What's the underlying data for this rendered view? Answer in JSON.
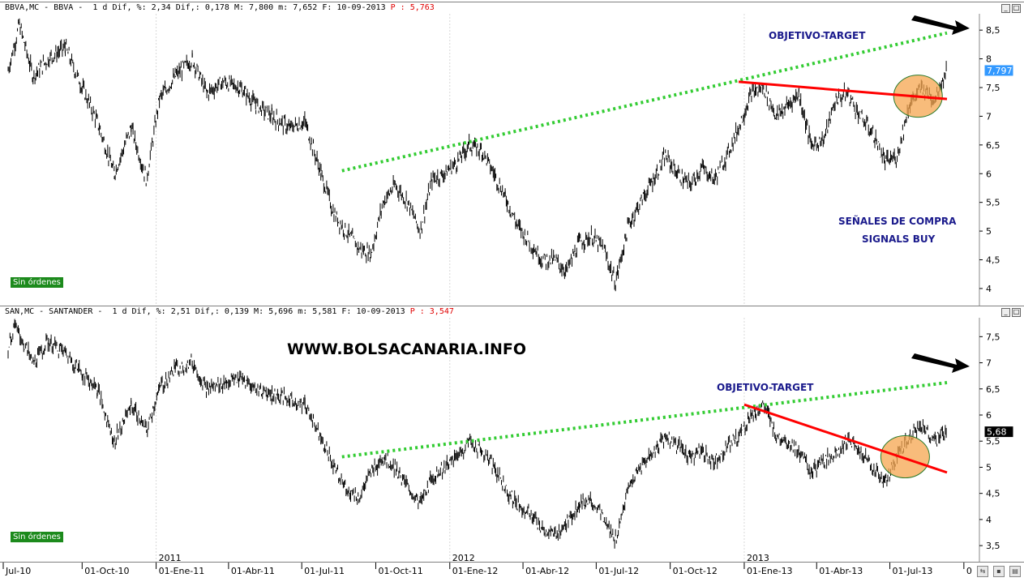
{
  "panes": [
    {
      "id": "bbva",
      "header": {
        "symbol": "BBVA,MC - BBVA -  1 d Dif, %: 2,34 Dif,: 0,178 M: 7,800 m: 7,652 F: 10-09-2013 ",
        "price_label": "P : 5,763"
      },
      "orders_label": "Sin órdenes",
      "last_value_label": "7,797",
      "annotations": {
        "target": "OBJETIVO-TARGET",
        "signals_line1": "SEÑALES DE COMPRA",
        "signals_line2": "SIGNALS BUY"
      },
      "y_ticks": [
        "8,5",
        "8",
        "7,5",
        "7",
        "6,5",
        "6",
        "5,5",
        "5",
        "4,5",
        "4"
      ]
    },
    {
      "id": "san",
      "header": {
        "symbol": "SAN,MC - SANTANDER -  1 d Dif, %: 2,51 Dif,: 0,139 M: 5,696 m: 5,581 F: 10-09-2013 ",
        "price_label": "P : 3,547"
      },
      "orders_label": "Sin órdenes",
      "last_value_label": "5,68",
      "annotations": {
        "website": "WWW.BOLSACANARIA.INFO",
        "target": "OBJETIVO-TARGET"
      },
      "y_ticks": [
        "7,5",
        "7",
        "6,5",
        "6",
        "5,5",
        "5",
        "4,5",
        "4",
        "3,5"
      ]
    }
  ],
  "x_axis": {
    "year_labels": [
      "2011",
      "2012",
      "2013"
    ],
    "date_labels": [
      "Jul-10",
      "01-Oct-10",
      "01-Ene-11",
      "01-Abr-11",
      "01-Jul-11",
      "01-Oct-11",
      "01-Ene-12",
      "01-Abr-12",
      "01-Jul-12",
      "01-Oct-12",
      "01-Ene-13",
      "01-Abr-13",
      "01-Jul-13",
      "0"
    ]
  },
  "colors": {
    "price_line": "#000000",
    "trend_up": "#33cc33",
    "resistance": "#ff0000",
    "highlight_fill": "#f5a54f",
    "annotation_text": "#1a1a8c",
    "badge": "#1c8a1c",
    "last_value_box": "#3399ff"
  },
  "chart_data": [
    {
      "type": "line",
      "title": "BBVA,MC - BBVA",
      "ylim": [
        3.9,
        8.7
      ],
      "x_range": [
        "2010-07-01",
        "2013-09-10"
      ],
      "series": [
        {
          "name": "BBVA",
          "points": [
            [
              "2010-07-01",
              7.8
            ],
            [
              "2010-07-15",
              8.6
            ],
            [
              "2010-08-01",
              7.7
            ],
            [
              "2010-08-20",
              8.0
            ],
            [
              "2010-09-10",
              8.2
            ],
            [
              "2010-10-01",
              7.5
            ],
            [
              "2010-10-20",
              6.9
            ],
            [
              "2010-11-10",
              6.0
            ],
            [
              "2010-12-01",
              6.8
            ],
            [
              "2010-12-20",
              5.9
            ],
            [
              "2011-01-05",
              7.3
            ],
            [
              "2011-01-25",
              7.7
            ],
            [
              "2011-02-15",
              8.0
            ],
            [
              "2011-03-05",
              7.4
            ],
            [
              "2011-03-25",
              7.6
            ],
            [
              "2011-04-15",
              7.5
            ],
            [
              "2011-05-05",
              7.2
            ],
            [
              "2011-05-25",
              7.0
            ],
            [
              "2011-06-15",
              6.8
            ],
            [
              "2011-07-05",
              6.9
            ],
            [
              "2011-07-25",
              6.0
            ],
            [
              "2011-08-10",
              5.3
            ],
            [
              "2011-08-25",
              5.0
            ],
            [
              "2011-09-10",
              4.7
            ],
            [
              "2011-09-25",
              4.6
            ],
            [
              "2011-10-10",
              5.5
            ],
            [
              "2011-10-25",
              5.8
            ],
            [
              "2011-11-10",
              5.5
            ],
            [
              "2011-11-25",
              5.0
            ],
            [
              "2011-12-10",
              5.9
            ],
            [
              "2011-12-25",
              6.0
            ],
            [
              "2012-01-10",
              6.2
            ],
            [
              "2012-01-25",
              6.5
            ],
            [
              "2012-02-10",
              6.4
            ],
            [
              "2012-02-25",
              6.0
            ],
            [
              "2012-03-10",
              5.6
            ],
            [
              "2012-03-25",
              5.1
            ],
            [
              "2012-04-10",
              4.8
            ],
            [
              "2012-04-25",
              4.5
            ],
            [
              "2012-05-10",
              4.5
            ],
            [
              "2012-05-25",
              4.3
            ],
            [
              "2012-06-10",
              4.8
            ],
            [
              "2012-06-25",
              4.9
            ],
            [
              "2012-07-10",
              4.7
            ],
            [
              "2012-07-25",
              4.1
            ],
            [
              "2012-08-10",
              5.1
            ],
            [
              "2012-08-25",
              5.5
            ],
            [
              "2012-09-10",
              5.9
            ],
            [
              "2012-09-25",
              6.3
            ],
            [
              "2012-10-10",
              6.0
            ],
            [
              "2012-10-25",
              5.8
            ],
            [
              "2012-11-10",
              6.1
            ],
            [
              "2012-11-25",
              5.9
            ],
            [
              "2012-12-10",
              6.3
            ],
            [
              "2012-12-25",
              6.8
            ],
            [
              "2013-01-10",
              7.4
            ],
            [
              "2013-01-25",
              7.5
            ],
            [
              "2013-02-10",
              7.0
            ],
            [
              "2013-02-25",
              7.2
            ],
            [
              "2013-03-10",
              7.4
            ],
            [
              "2013-03-25",
              6.5
            ],
            [
              "2013-04-10",
              6.6
            ],
            [
              "2013-04-25",
              7.3
            ],
            [
              "2013-05-10",
              7.4
            ],
            [
              "2013-05-25",
              7.0
            ],
            [
              "2013-06-10",
              6.7
            ],
            [
              "2013-06-25",
              6.2
            ],
            [
              "2013-07-10",
              6.3
            ],
            [
              "2013-07-25",
              7.2
            ],
            [
              "2013-08-10",
              7.5
            ],
            [
              "2013-08-25",
              7.3
            ],
            [
              "2013-09-10",
              7.8
            ]
          ]
        }
      ],
      "trendlines": [
        {
          "label": "OBJETIVO-TARGET",
          "style": "dotted",
          "color": "green",
          "from": [
            "2011-08-20",
            6.05
          ],
          "to": [
            "2013-09-10",
            8.45
          ]
        },
        {
          "label": "",
          "style": "solid",
          "color": "red",
          "from": [
            "2012-12-25",
            7.6
          ],
          "to": [
            "2013-09-10",
            7.3
          ]
        }
      ],
      "highlight": {
        "center": [
          "2013-08-05",
          7.35
        ]
      }
    },
    {
      "type": "line",
      "title": "SAN,MC - SANTANDER",
      "ylim": [
        3.3,
        7.8
      ],
      "x_range": [
        "2010-07-01",
        "2013-09-10"
      ],
      "series": [
        {
          "name": "SANTANDER",
          "points": [
            [
              "2010-07-01",
              7.3
            ],
            [
              "2010-07-10",
              7.7
            ],
            [
              "2010-08-01",
              7.0
            ],
            [
              "2010-08-20",
              7.4
            ],
            [
              "2010-09-10",
              7.2
            ],
            [
              "2010-10-01",
              6.8
            ],
            [
              "2010-10-20",
              6.5
            ],
            [
              "2010-11-10",
              5.5
            ],
            [
              "2010-12-01",
              6.2
            ],
            [
              "2010-12-20",
              5.7
            ],
            [
              "2011-01-05",
              6.5
            ],
            [
              "2011-01-25",
              6.9
            ],
            [
              "2011-02-15",
              7.0
            ],
            [
              "2011-03-05",
              6.5
            ],
            [
              "2011-03-25",
              6.6
            ],
            [
              "2011-04-15",
              6.7
            ],
            [
              "2011-05-05",
              6.5
            ],
            [
              "2011-05-25",
              6.4
            ],
            [
              "2011-06-15",
              6.3
            ],
            [
              "2011-07-05",
              6.2
            ],
            [
              "2011-07-25",
              5.6
            ],
            [
              "2011-08-10",
              5.0
            ],
            [
              "2011-08-25",
              4.6
            ],
            [
              "2011-09-10",
              4.4
            ],
            [
              "2011-09-25",
              4.9
            ],
            [
              "2011-10-10",
              5.2
            ],
            [
              "2011-10-25",
              5.0
            ],
            [
              "2011-11-10",
              4.6
            ],
            [
              "2011-11-25",
              4.3
            ],
            [
              "2011-12-10",
              4.8
            ],
            [
              "2011-12-25",
              5.0
            ],
            [
              "2012-01-10",
              5.2
            ],
            [
              "2012-01-25",
              5.5
            ],
            [
              "2012-02-10",
              5.3
            ],
            [
              "2012-02-25",
              5.0
            ],
            [
              "2012-03-10",
              4.6
            ],
            [
              "2012-03-25",
              4.3
            ],
            [
              "2012-04-10",
              4.1
            ],
            [
              "2012-04-25",
              3.8
            ],
            [
              "2012-05-10",
              3.7
            ],
            [
              "2012-05-25",
              3.9
            ],
            [
              "2012-06-10",
              4.3
            ],
            [
              "2012-06-25",
              4.4
            ],
            [
              "2012-07-10",
              4.0
            ],
            [
              "2012-07-25",
              3.6
            ],
            [
              "2012-08-10",
              4.6
            ],
            [
              "2012-08-25",
              5.0
            ],
            [
              "2012-09-10",
              5.3
            ],
            [
              "2012-09-25",
              5.6
            ],
            [
              "2012-10-10",
              5.4
            ],
            [
              "2012-10-25",
              5.2
            ],
            [
              "2012-11-10",
              5.3
            ],
            [
              "2012-11-25",
              5.1
            ],
            [
              "2012-12-10",
              5.4
            ],
            [
              "2012-12-25",
              5.6
            ],
            [
              "2013-01-10",
              6.0
            ],
            [
              "2013-01-25",
              6.2
            ],
            [
              "2013-02-10",
              5.6
            ],
            [
              "2013-02-25",
              5.5
            ],
            [
              "2013-03-10",
              5.3
            ],
            [
              "2013-03-25",
              4.9
            ],
            [
              "2013-04-10",
              5.1
            ],
            [
              "2013-04-25",
              5.3
            ],
            [
              "2013-05-10",
              5.5
            ],
            [
              "2013-05-25",
              5.3
            ],
            [
              "2013-06-10",
              5.0
            ],
            [
              "2013-06-25",
              4.7
            ],
            [
              "2013-07-10",
              5.2
            ],
            [
              "2013-07-25",
              5.6
            ],
            [
              "2013-08-10",
              5.8
            ],
            [
              "2013-08-25",
              5.5
            ],
            [
              "2013-09-10",
              5.7
            ]
          ]
        }
      ],
      "trendlines": [
        {
          "label": "OBJETIVO-TARGET",
          "style": "dotted",
          "color": "green",
          "from": [
            "2011-08-20",
            5.2
          ],
          "to": [
            "2013-09-10",
            6.62
          ]
        },
        {
          "label": "",
          "style": "solid",
          "color": "red",
          "from": [
            "2013-01-01",
            6.2
          ],
          "to": [
            "2013-09-10",
            4.9
          ]
        }
      ],
      "highlight": {
        "center": [
          "2013-07-20",
          5.2
        ]
      }
    }
  ]
}
